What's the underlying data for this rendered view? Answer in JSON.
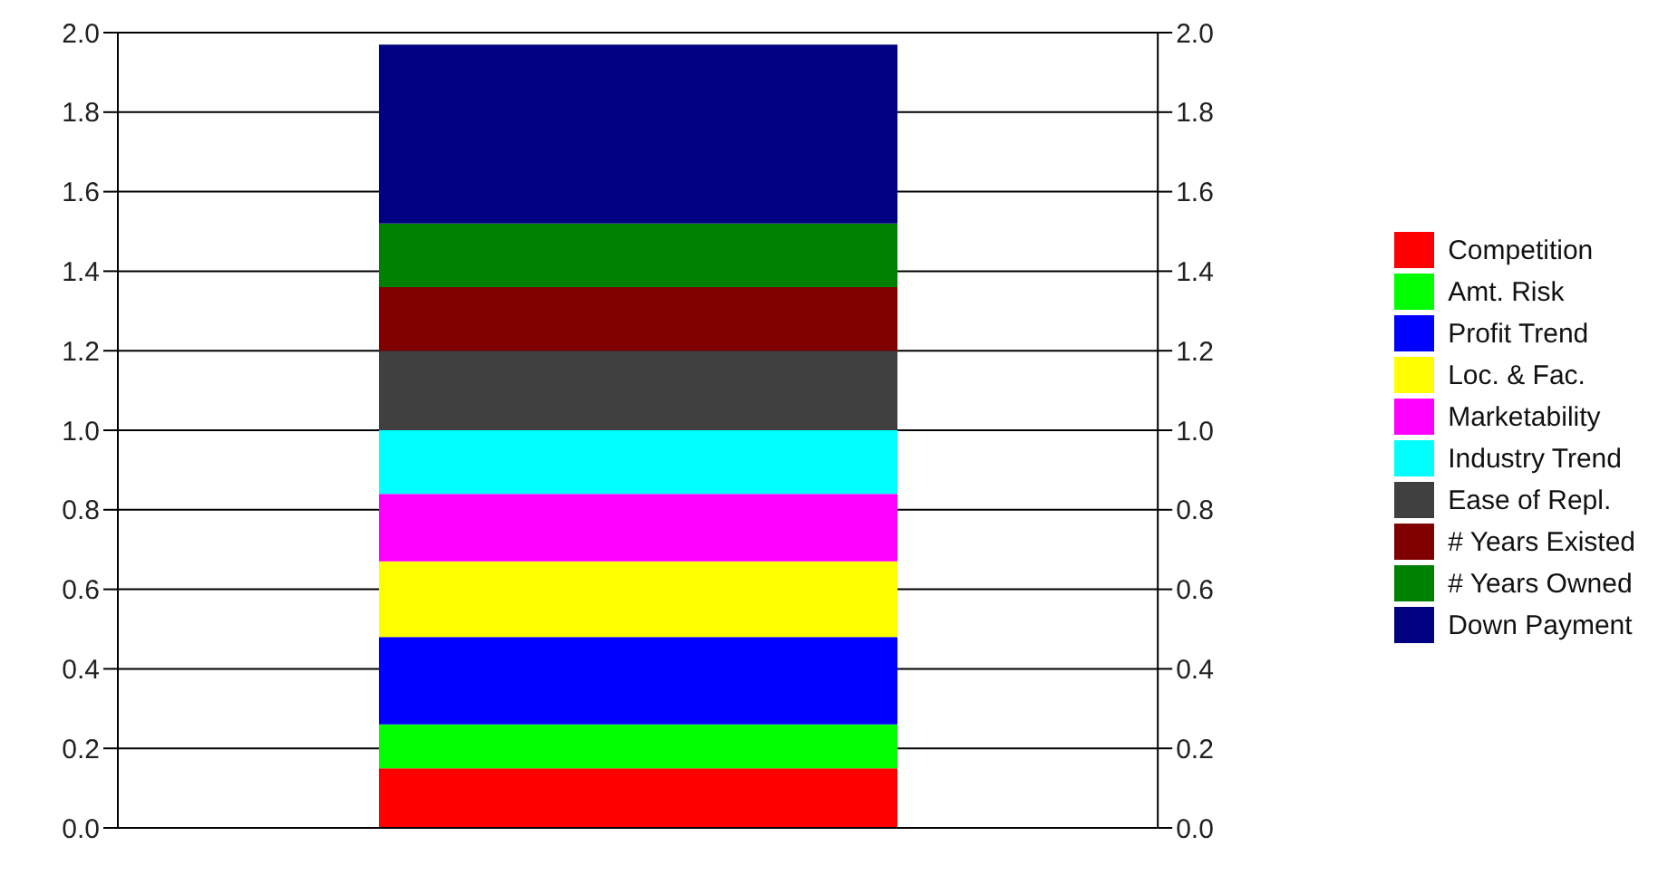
{
  "chart_data": {
    "type": "bar",
    "stacked": true,
    "categories": [
      null
    ],
    "series": [
      {
        "name": "Competition",
        "color": "#ff0000",
        "values": [
          0.15
        ]
      },
      {
        "name": "Amt. Risk",
        "color": "#00ff00",
        "values": [
          0.11
        ]
      },
      {
        "name": "Profit Trend",
        "color": "#0000ff",
        "values": [
          0.22
        ]
      },
      {
        "name": "Loc. & Fac.",
        "color": "#ffff00",
        "values": [
          0.19
        ]
      },
      {
        "name": "Marketability",
        "color": "#ff00ff",
        "values": [
          0.17
        ]
      },
      {
        "name": "Industry Trend",
        "color": "#00ffff",
        "values": [
          0.16
        ]
      },
      {
        "name": "Ease of Repl.",
        "color": "#404040",
        "values": [
          0.2
        ]
      },
      {
        "name": "# Years Existed",
        "color": "#800000",
        "values": [
          0.16
        ]
      },
      {
        "name": "# Years Owned",
        "color": "#008000",
        "values": [
          0.16
        ]
      },
      {
        "name": "Down Payment",
        "color": "#000080",
        "values": [
          0.45
        ]
      }
    ],
    "ylim": [
      0,
      2
    ],
    "yticks": [
      {
        "value": 0,
        "label": "0.0"
      },
      {
        "value": 0.2,
        "label": "0.2"
      },
      {
        "value": 0.4,
        "label": "0.4"
      },
      {
        "value": 0.6,
        "label": "0.6"
      },
      {
        "value": 0.8,
        "label": "0.8"
      },
      {
        "value": 1,
        "label": "1.0"
      },
      {
        "value": 1.2,
        "label": "1.2"
      },
      {
        "value": 1.4,
        "label": "1.4"
      },
      {
        "value": 1.6,
        "label": "1.6"
      },
      {
        "value": 1.8,
        "label": "1.8"
      },
      {
        "value": 2,
        "label": "2.0"
      }
    ],
    "y2lim": [
      0,
      2
    ],
    "y2ticks": [
      {
        "value": 0,
        "label": "0.0"
      },
      {
        "value": 0.2,
        "label": "0.2"
      },
      {
        "value": 0.4,
        "label": "0.4"
      },
      {
        "value": 0.6,
        "label": "0.6"
      },
      {
        "value": 0.8,
        "label": "0.8"
      },
      {
        "value": 1,
        "label": "1.0"
      },
      {
        "value": 1.2,
        "label": "1.2"
      },
      {
        "value": 1.4,
        "label": "1.4"
      },
      {
        "value": 1.6,
        "label": "1.6"
      },
      {
        "value": 1.8,
        "label": "1.8"
      },
      {
        "value": 2,
        "label": "2.0"
      }
    ],
    "grid": "y",
    "legend": "right"
  }
}
